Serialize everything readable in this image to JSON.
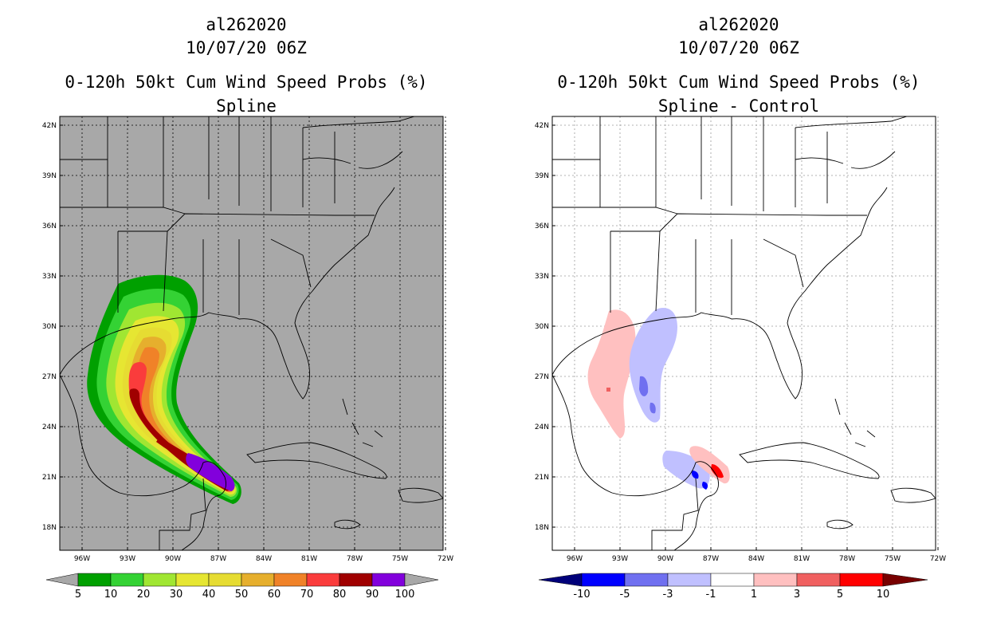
{
  "colors": {
    "land_gray": "#a8a8a8",
    "prob_scale": [
      "#00a000",
      "#34d234",
      "#a0e632",
      "#e6e632",
      "#e6dc32",
      "#e6af2d",
      "#f08228",
      "#fa3c3c",
      "#a00000",
      "#8200dc"
    ],
    "diff_scale": [
      "#00007a",
      "#0000ff",
      "#7070f0",
      "#c0c0ff",
      "#ffffff",
      "#ffc0c0",
      "#f06060",
      "#ff0000",
      "#780000"
    ]
  },
  "left_panel": {
    "storm_id": "al262020",
    "datetime": "10/07/20 06Z",
    "product": "0-120h 50kt Cum Wind Speed Probs (%)",
    "subtitle": "Spline",
    "lat_labels": [
      "42N",
      "39N",
      "36N",
      "33N",
      "30N",
      "27N",
      "24N",
      "21N",
      "18N"
    ],
    "lon_labels": [
      "96W",
      "93W",
      "90W",
      "87W",
      "84W",
      "81W",
      "78W",
      "75W",
      "72W"
    ],
    "colorbar_labels": [
      "5",
      "10",
      "20",
      "30",
      "40",
      "50",
      "60",
      "70",
      "80",
      "90",
      "100"
    ]
  },
  "right_panel": {
    "storm_id": "al262020",
    "datetime": "10/07/20 06Z",
    "product": "0-120h 50kt Cum Wind Speed Probs (%)",
    "subtitle": "Spline - Control",
    "lat_labels": [
      "42N",
      "39N",
      "36N",
      "33N",
      "30N",
      "27N",
      "24N",
      "21N",
      "18N"
    ],
    "lon_labels": [
      "96W",
      "93W",
      "90W",
      "87W",
      "84W",
      "81W",
      "78W",
      "75W",
      "72W"
    ],
    "colorbar_labels": [
      "-10",
      "-5",
      "-3",
      "-1",
      "1",
      "3",
      "5",
      "10"
    ]
  }
}
